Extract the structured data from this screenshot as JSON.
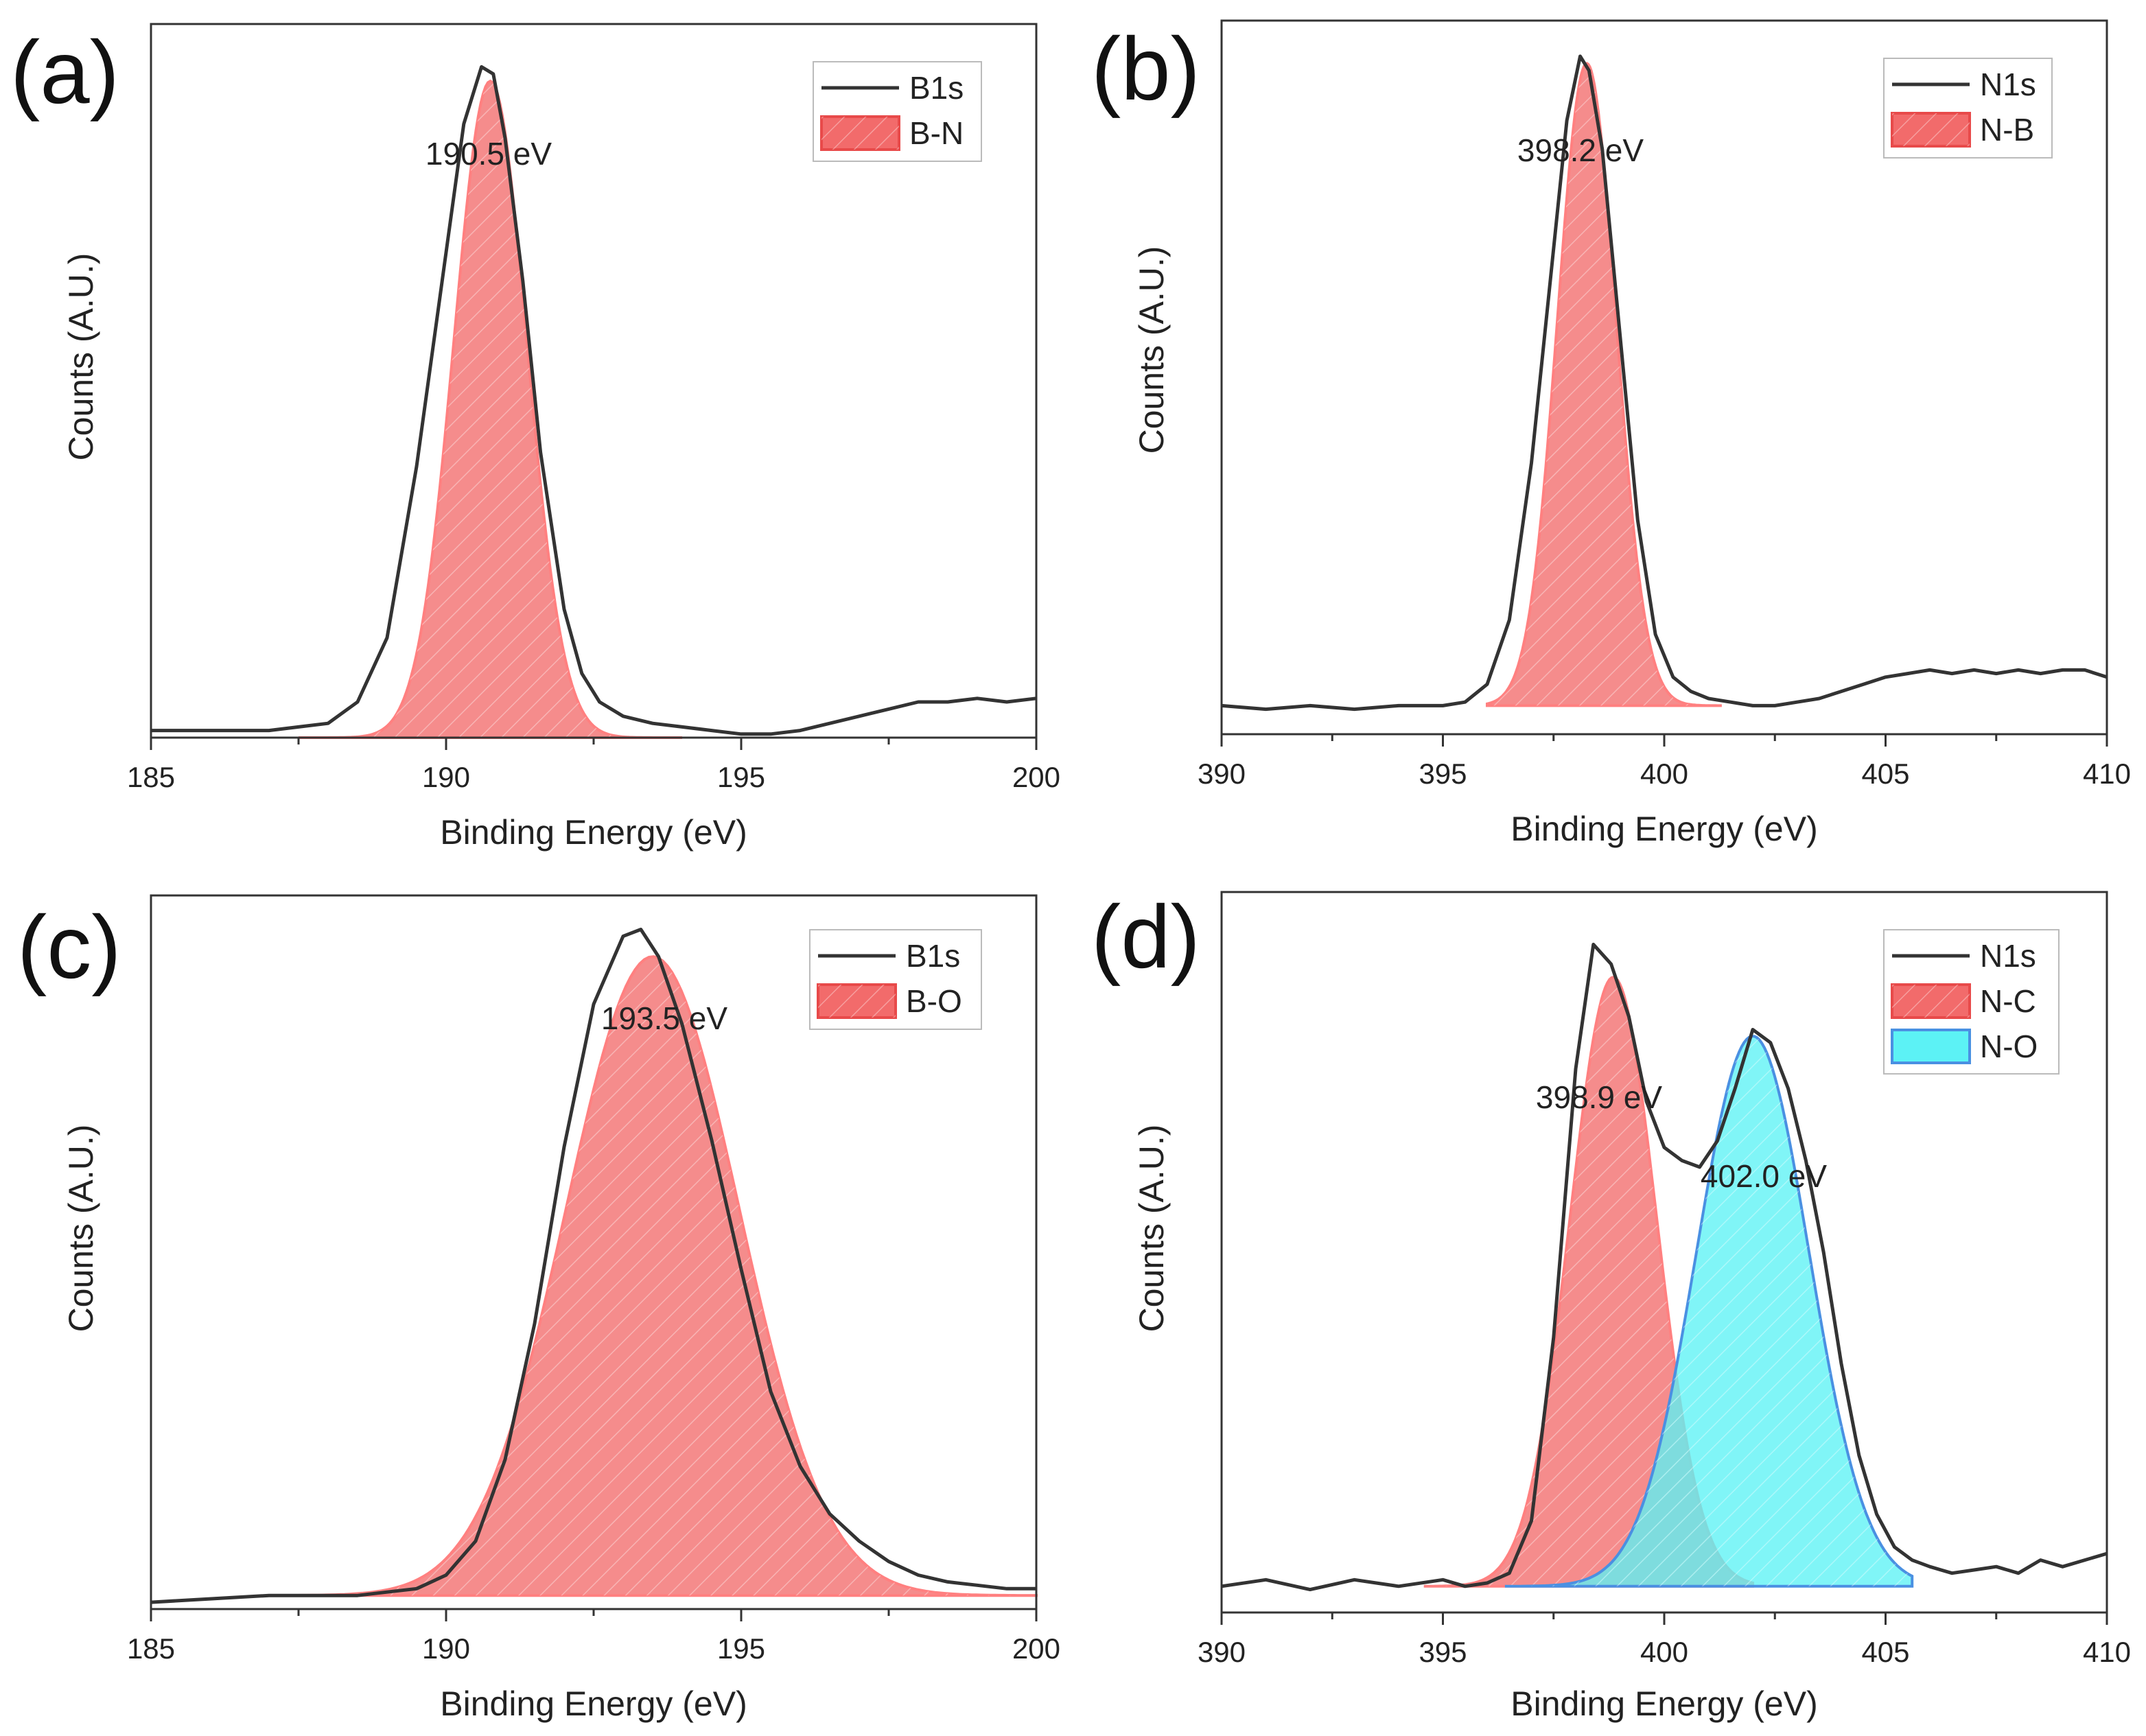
{
  "chart_data": [
    {
      "panel": "(a)",
      "type": "line",
      "xlabel": "Binding Energy (eV)",
      "ylabel": "Counts (A.U.)",
      "xlim": [
        185,
        200
      ],
      "ylim": [
        0,
        1.0
      ],
      "xticks": [
        185,
        190,
        195,
        200
      ],
      "annotations": [
        {
          "text": "190.5 eV",
          "x": 190.5
        }
      ],
      "legend": {
        "position": "top-right",
        "entries": [
          {
            "label": "B1s",
            "kind": "line",
            "color": "#333333"
          },
          {
            "label": "B-N",
            "kind": "fill",
            "color": "#f26b6b"
          }
        ]
      },
      "series": [
        {
          "name": "B1s",
          "kind": "line",
          "color": "#333333",
          "x": [
            185,
            186,
            187,
            187.5,
            188,
            188.5,
            189,
            189.5,
            190,
            190.3,
            190.6,
            190.8,
            191.0,
            191.3,
            191.6,
            192,
            192.3,
            192.6,
            193,
            193.5,
            194,
            194.5,
            195,
            195.5,
            196,
            196.5,
            197,
            197.5,
            198,
            198.5,
            199,
            199.5,
            200
          ],
          "y": [
            0.01,
            0.01,
            0.01,
            0.015,
            0.02,
            0.05,
            0.14,
            0.38,
            0.68,
            0.86,
            0.94,
            0.93,
            0.84,
            0.64,
            0.4,
            0.18,
            0.09,
            0.05,
            0.03,
            0.02,
            0.015,
            0.01,
            0.005,
            0.005,
            0.01,
            0.02,
            0.03,
            0.04,
            0.05,
            0.05,
            0.055,
            0.05,
            0.055
          ]
        },
        {
          "name": "B-N",
          "kind": "fill",
          "color": "#f26b6b",
          "center": 190.75,
          "fwhm": 1.45,
          "amplitude": 0.92,
          "baseline": 0.0,
          "range": [
            187.5,
            194
          ]
        }
      ]
    },
    {
      "panel": "(b)",
      "type": "line",
      "xlabel": "Binding Energy (eV)",
      "ylabel": "Counts (A.U.)",
      "xlim": [
        390,
        410
      ],
      "ylim": [
        0,
        1.0
      ],
      "xticks": [
        390,
        395,
        400,
        405,
        410
      ],
      "annotations": [
        {
          "text": "398.2 eV",
          "x": 398.2
        }
      ],
      "legend": {
        "position": "top-right",
        "entries": [
          {
            "label": "N1s",
            "kind": "line",
            "color": "#333333"
          },
          {
            "label": "N-B",
            "kind": "fill",
            "color": "#f26b6b"
          }
        ]
      },
      "series": [
        {
          "name": "N1s",
          "kind": "line",
          "color": "#333333",
          "x": [
            390,
            391,
            392,
            393,
            394,
            395,
            395.5,
            396,
            396.5,
            397,
            397.4,
            397.8,
            398.1,
            398.3,
            398.6,
            399,
            399.4,
            399.8,
            400.2,
            400.6,
            401,
            401.5,
            402,
            402.5,
            403,
            403.5,
            404,
            404.5,
            405,
            405.5,
            406,
            406.5,
            407,
            407.5,
            408,
            408.5,
            409,
            409.5,
            410
          ],
          "y": [
            0.04,
            0.035,
            0.04,
            0.035,
            0.04,
            0.04,
            0.045,
            0.07,
            0.16,
            0.38,
            0.62,
            0.86,
            0.95,
            0.93,
            0.82,
            0.56,
            0.3,
            0.14,
            0.08,
            0.06,
            0.05,
            0.045,
            0.04,
            0.04,
            0.045,
            0.05,
            0.06,
            0.07,
            0.08,
            0.085,
            0.09,
            0.085,
            0.09,
            0.085,
            0.09,
            0.085,
            0.09,
            0.09,
            0.08
          ]
        },
        {
          "name": "N-B",
          "kind": "fill",
          "color": "#f26b6b",
          "center": 398.25,
          "fwhm": 1.55,
          "amplitude": 0.9,
          "baseline": 0.04,
          "range": [
            396,
            401.3
          ]
        }
      ]
    },
    {
      "panel": "(c)",
      "type": "line",
      "xlabel": "Binding Energy (eV)",
      "ylabel": "Counts (A.U.)",
      "xlim": [
        185,
        200
      ],
      "ylim": [
        0,
        1.05
      ],
      "xticks": [
        185,
        190,
        195,
        200
      ],
      "annotations": [
        {
          "text": "193.5 eV",
          "x": 193.5
        }
      ],
      "legend": {
        "position": "top-right",
        "entries": [
          {
            "label": "B1s",
            "kind": "line",
            "color": "#333333"
          },
          {
            "label": "B-O",
            "kind": "fill",
            "color": "#f26b6b"
          }
        ]
      },
      "series": [
        {
          "name": "B1s",
          "kind": "line",
          "color": "#333333",
          "x": [
            185,
            186,
            187,
            187.5,
            188,
            188.5,
            189,
            189.5,
            190,
            190.5,
            191,
            191.5,
            192,
            192.5,
            193,
            193.3,
            193.6,
            194,
            194.5,
            195,
            195.5,
            196,
            196.5,
            197,
            197.5,
            198,
            198.5,
            199,
            199.5,
            200
          ],
          "y": [
            0.01,
            0.015,
            0.02,
            0.02,
            0.02,
            0.02,
            0.025,
            0.03,
            0.05,
            0.1,
            0.22,
            0.42,
            0.68,
            0.89,
            0.99,
            1.0,
            0.96,
            0.86,
            0.69,
            0.5,
            0.32,
            0.21,
            0.14,
            0.1,
            0.07,
            0.05,
            0.04,
            0.035,
            0.03,
            0.03
          ]
        },
        {
          "name": "B-O",
          "kind": "fill",
          "color": "#f26b6b",
          "center": 193.5,
          "fwhm": 3.45,
          "amplitude": 0.94,
          "baseline": 0.02,
          "range": [
            187.5,
            200
          ]
        }
      ]
    },
    {
      "panel": "(d)",
      "type": "line",
      "xlabel": "Binding Energy (eV)",
      "ylabel": "Counts (A.U.)",
      "xlim": [
        390,
        410
      ],
      "ylim": [
        0,
        1.1
      ],
      "xticks": [
        390,
        395,
        400,
        405,
        410
      ],
      "annotations": [
        {
          "text": "398.9 eV",
          "x": 398.9
        },
        {
          "text": "402.0 eV",
          "x": 402.0
        }
      ],
      "legend": {
        "position": "top-right",
        "entries": [
          {
            "label": "N1s",
            "kind": "line",
            "color": "#333333"
          },
          {
            "label": "N-C",
            "kind": "fill",
            "color": "#f26b6b"
          },
          {
            "label": "N-O",
            "kind": "fill",
            "color": "#5cf2f5"
          }
        ]
      },
      "series": [
        {
          "name": "N1s",
          "kind": "line",
          "color": "#333333",
          "x": [
            390,
            391,
            392,
            393,
            394,
            395,
            395.5,
            396,
            396.5,
            397,
            397.5,
            398,
            398.4,
            398.8,
            399.2,
            399.6,
            400,
            400.4,
            400.8,
            401.2,
            401.6,
            402,
            402.4,
            402.8,
            403.2,
            403.6,
            404,
            404.4,
            404.8,
            405.2,
            405.6,
            406,
            406.5,
            407,
            407.5,
            408,
            408.5,
            409,
            409.5,
            410
          ],
          "y": [
            0.04,
            0.05,
            0.035,
            0.05,
            0.04,
            0.05,
            0.04,
            0.045,
            0.06,
            0.14,
            0.42,
            0.83,
            1.02,
            0.99,
            0.91,
            0.78,
            0.71,
            0.69,
            0.68,
            0.72,
            0.8,
            0.89,
            0.87,
            0.8,
            0.69,
            0.55,
            0.38,
            0.24,
            0.15,
            0.1,
            0.08,
            0.07,
            0.06,
            0.065,
            0.07,
            0.06,
            0.08,
            0.07,
            0.08,
            0.09
          ]
        },
        {
          "name": "N-C",
          "kind": "fill",
          "color": "#f26b6b",
          "center": 398.85,
          "fwhm": 2.3,
          "amplitude": 0.93,
          "baseline": 0.04,
          "range": [
            394.6,
            402.0
          ]
        },
        {
          "name": "N-O",
          "kind": "fill",
          "color": "#5cf2f5",
          "center": 402.0,
          "fwhm": 3.0,
          "amplitude": 0.84,
          "baseline": 0.04,
          "range": [
            396.4,
            405.6
          ]
        }
      ]
    }
  ]
}
